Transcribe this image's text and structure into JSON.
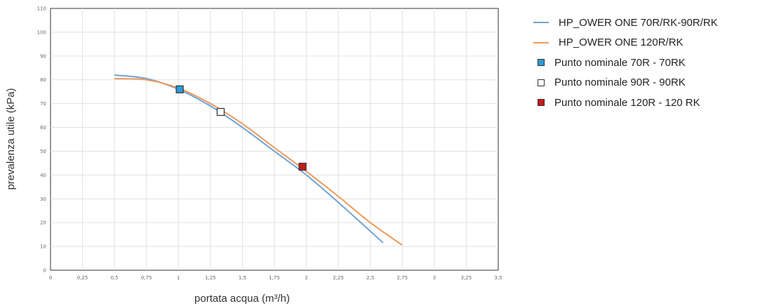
{
  "chart_data": {
    "type": "line",
    "xlabel": "portata acqua (m³/h)",
    "ylabel": "prevalenza utile (kPa)",
    "xlim": [
      0,
      3.5
    ],
    "ylim": [
      0,
      110
    ],
    "grid": true,
    "legend_position": "right",
    "x_ticks": [
      "0",
      "0,25",
      "0,5",
      "0,75",
      "1",
      "1,25",
      "1,5",
      "1,75",
      "2",
      "2,25",
      "2,5",
      "2,75",
      "3",
      "3,25",
      "3,5"
    ],
    "y_ticks": [
      "0",
      "10",
      "20",
      "30",
      "40",
      "50",
      "60",
      "70",
      "80",
      "90",
      "100",
      "110"
    ],
    "series": [
      {
        "name": "HP_OWER ONE 70R/RK-90R/RK",
        "kind": "line",
        "color": "#6fa3d3",
        "x": [
          0.5,
          0.75,
          1.0,
          1.25,
          1.5,
          1.75,
          2.0,
          2.25,
          2.6
        ],
        "y": [
          82,
          80.5,
          76,
          69,
          60,
          50,
          40,
          28.5,
          11.5
        ]
      },
      {
        "name": "HP_OWER ONE 120R/RK",
        "kind": "line",
        "color": "#ef9a5b",
        "x": [
          0.5,
          0.75,
          1.0,
          1.25,
          1.5,
          1.75,
          2.0,
          2.25,
          2.5,
          2.75
        ],
        "y": [
          80.5,
          80,
          76.5,
          70,
          61.5,
          51.5,
          41.5,
          31,
          20,
          10.5
        ]
      },
      {
        "name": "Punto nominale 70R - 70RK",
        "kind": "point",
        "color": "#2e9bd6",
        "x": [
          1.01
        ],
        "y": [
          76
        ]
      },
      {
        "name": "Punto nominale 90R - 90RK",
        "kind": "point",
        "color": "#ffffff",
        "x": [
          1.33
        ],
        "y": [
          66.5
        ]
      },
      {
        "name": "Punto nominale 120R - 120 RK",
        "kind": "point",
        "color": "#c8191c",
        "x": [
          1.97
        ],
        "y": [
          43.5
        ]
      }
    ]
  }
}
